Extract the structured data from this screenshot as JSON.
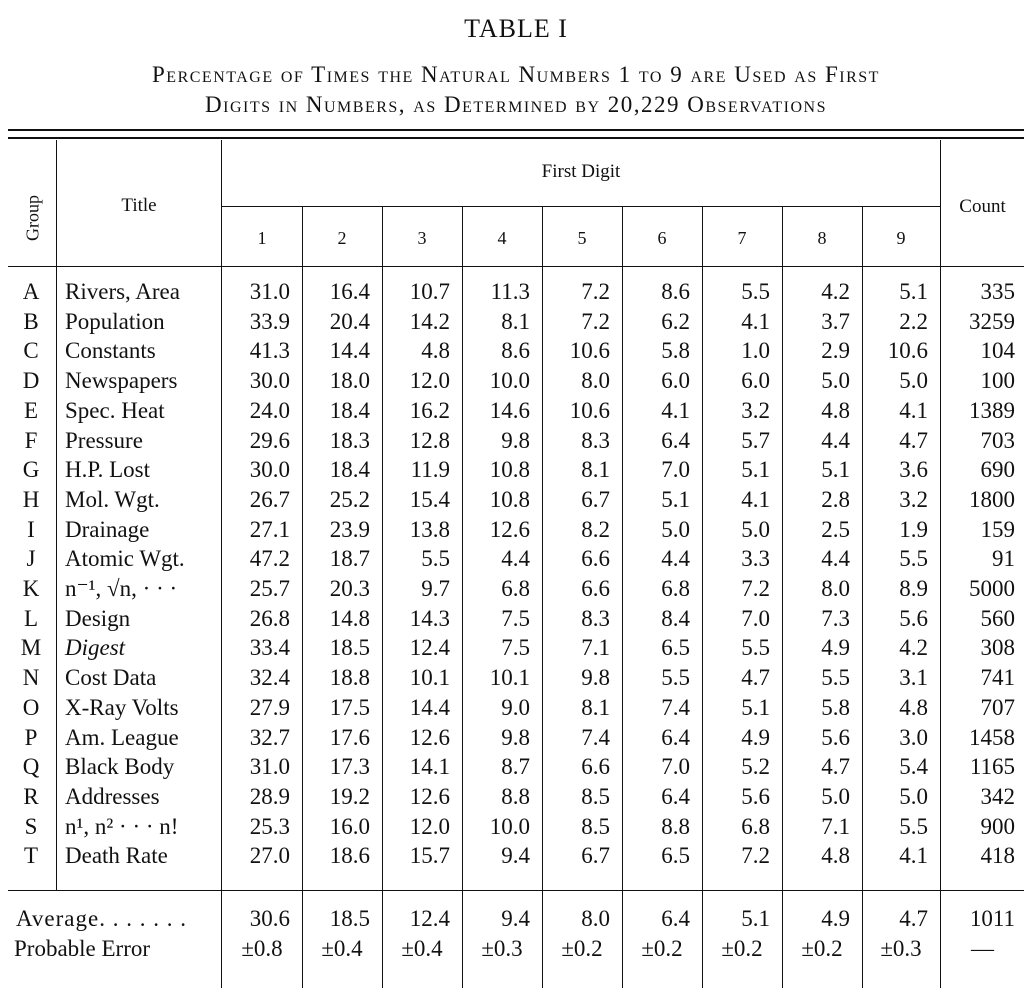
{
  "table_label": "TABLE I",
  "caption_line1": "Percentage of Times the Natural Numbers 1 to 9 are Used as First",
  "caption_line2": "Digits in Numbers, as Determined by 20,229 Observations",
  "headers": {
    "group": "Group",
    "title": "Title",
    "first_digit": "First Digit",
    "count": "Count",
    "digits": [
      "1",
      "2",
      "3",
      "4",
      "5",
      "6",
      "7",
      "8",
      "9"
    ]
  },
  "rows": [
    {
      "group": "A",
      "title": "Rivers, Area",
      "values": [
        "31.0",
        "16.4",
        "10.7",
        "11.3",
        "7.2",
        "8.6",
        "5.5",
        "4.2",
        "5.1"
      ],
      "count": "335"
    },
    {
      "group": "B",
      "title": "Population",
      "values": [
        "33.9",
        "20.4",
        "14.2",
        "8.1",
        "7.2",
        "6.2",
        "4.1",
        "3.7",
        "2.2"
      ],
      "count": "3259"
    },
    {
      "group": "C",
      "title": "Constants",
      "values": [
        "41.3",
        "14.4",
        "4.8",
        "8.6",
        "10.6",
        "5.8",
        "1.0",
        "2.9",
        "10.6"
      ],
      "count": "104"
    },
    {
      "group": "D",
      "title": "Newspapers",
      "values": [
        "30.0",
        "18.0",
        "12.0",
        "10.0",
        "8.0",
        "6.0",
        "6.0",
        "5.0",
        "5.0"
      ],
      "count": "100"
    },
    {
      "group": "E",
      "title": "Spec. Heat",
      "values": [
        "24.0",
        "18.4",
        "16.2",
        "14.6",
        "10.6",
        "4.1",
        "3.2",
        "4.8",
        "4.1"
      ],
      "count": "1389"
    },
    {
      "group": "F",
      "title": "Pressure",
      "values": [
        "29.6",
        "18.3",
        "12.8",
        "9.8",
        "8.3",
        "6.4",
        "5.7",
        "4.4",
        "4.7"
      ],
      "count": "703"
    },
    {
      "group": "G",
      "title": "H.P. Lost",
      "values": [
        "30.0",
        "18.4",
        "11.9",
        "10.8",
        "8.1",
        "7.0",
        "5.1",
        "5.1",
        "3.6"
      ],
      "count": "690"
    },
    {
      "group": "H",
      "title": "Mol. Wgt.",
      "values": [
        "26.7",
        "25.2",
        "15.4",
        "10.8",
        "6.7",
        "5.1",
        "4.1",
        "2.8",
        "3.2"
      ],
      "count": "1800"
    },
    {
      "group": "I",
      "title": "Drainage",
      "values": [
        "27.1",
        "23.9",
        "13.8",
        "12.6",
        "8.2",
        "5.0",
        "5.0",
        "2.5",
        "1.9"
      ],
      "count": "159"
    },
    {
      "group": "J",
      "title": "Atomic Wgt.",
      "values": [
        "47.2",
        "18.7",
        "5.5",
        "4.4",
        "6.6",
        "4.4",
        "3.3",
        "4.4",
        "5.5"
      ],
      "count": "91"
    },
    {
      "group": "K",
      "title": "n⁻¹, √n, · · ·",
      "values": [
        "25.7",
        "20.3",
        "9.7",
        "6.8",
        "6.6",
        "6.8",
        "7.2",
        "8.0",
        "8.9"
      ],
      "count": "5000"
    },
    {
      "group": "L",
      "title": "Design",
      "values": [
        "26.8",
        "14.8",
        "14.3",
        "7.5",
        "8.3",
        "8.4",
        "7.0",
        "7.3",
        "5.6"
      ],
      "count": "560"
    },
    {
      "group": "M",
      "title": "Digest",
      "values": [
        "33.4",
        "18.5",
        "12.4",
        "7.5",
        "7.1",
        "6.5",
        "5.5",
        "4.9",
        "4.2"
      ],
      "count": "308"
    },
    {
      "group": "N",
      "title": "Cost Data",
      "values": [
        "32.4",
        "18.8",
        "10.1",
        "10.1",
        "9.8",
        "5.5",
        "4.7",
        "5.5",
        "3.1"
      ],
      "count": "741"
    },
    {
      "group": "O",
      "title": "X-Ray Volts",
      "values": [
        "27.9",
        "17.5",
        "14.4",
        "9.0",
        "8.1",
        "7.4",
        "5.1",
        "5.8",
        "4.8"
      ],
      "count": "707"
    },
    {
      "group": "P",
      "title": "Am. League",
      "values": [
        "32.7",
        "17.6",
        "12.6",
        "9.8",
        "7.4",
        "6.4",
        "4.9",
        "5.6",
        "3.0"
      ],
      "count": "1458"
    },
    {
      "group": "Q",
      "title": "Black Body",
      "values": [
        "31.0",
        "17.3",
        "14.1",
        "8.7",
        "6.6",
        "7.0",
        "5.2",
        "4.7",
        "5.4"
      ],
      "count": "1165"
    },
    {
      "group": "R",
      "title": "Addresses",
      "values": [
        "28.9",
        "19.2",
        "12.6",
        "8.8",
        "8.5",
        "6.4",
        "5.6",
        "5.0",
        "5.0"
      ],
      "count": "342"
    },
    {
      "group": "S",
      "title": "n¹, n² · · · n!",
      "values": [
        "25.3",
        "16.0",
        "12.0",
        "10.0",
        "8.5",
        "8.8",
        "6.8",
        "7.1",
        "5.5"
      ],
      "count": "900"
    },
    {
      "group": "T",
      "title": "Death Rate",
      "values": [
        "27.0",
        "18.6",
        "15.7",
        "9.4",
        "6.7",
        "6.5",
        "7.2",
        "4.8",
        "4.1"
      ],
      "count": "418"
    }
  ],
  "footer": {
    "average_label": "Average. . . . . . .",
    "average_values": [
      "30.6",
      "18.5",
      "12.4",
      "9.4",
      "8.0",
      "6.4",
      "5.1",
      "4.9",
      "4.7"
    ],
    "average_count": "1011",
    "error_label": "Probable Error",
    "error_values": [
      "±0.8",
      "±0.4",
      "±0.4",
      "±0.3",
      "±0.2",
      "±0.2",
      "±0.2",
      "±0.2",
      "±0.3"
    ],
    "error_count": "—"
  }
}
